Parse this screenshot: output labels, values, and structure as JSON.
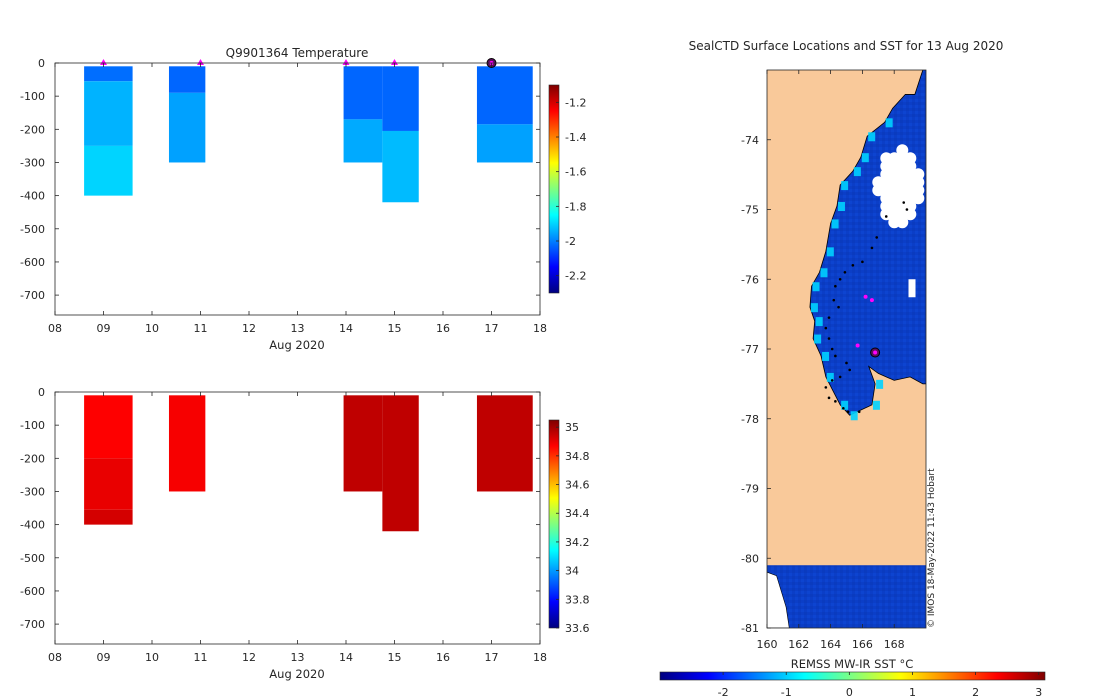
{
  "figure": {
    "credit": "© IMOS 18-May-2022 11:43 Hobart",
    "colors": {
      "axis": "#262626",
      "land": "#f9c99a",
      "ocean": "#0b3ec7",
      "marker": "#ff00ff",
      "current": "#5c0f5c",
      "track": "#000000",
      "cloud": "#ffffff"
    }
  },
  "chart_data": [
    {
      "id": "temperature",
      "type": "heatmap",
      "title": "Q9901364  Temperature",
      "xlabel": "Aug 2020",
      "ylabel": "",
      "xlim": [
        8,
        18
      ],
      "ylim": [
        -760,
        0
      ],
      "xticks": [
        8,
        9,
        10,
        11,
        12,
        13,
        14,
        15,
        16,
        17,
        18
      ],
      "xtick_labels": [
        "08",
        "09",
        "10",
        "11",
        "12",
        "13",
        "14",
        "15",
        "16",
        "17",
        "18"
      ],
      "yticks": [
        0,
        -100,
        -200,
        -300,
        -400,
        -500,
        -600,
        -700
      ],
      "ytick_labels": [
        "0",
        "-100",
        "-200",
        "-300",
        "-400",
        "-500",
        "-600",
        "-700"
      ],
      "profiles": [
        {
          "x0": 8.6,
          "x1": 9.6,
          "segments": [
            [
              -10,
              -55,
              -2.02
            ],
            [
              -55,
              -250,
              -1.94
            ],
            [
              -250,
              -400,
              -1.9
            ]
          ]
        },
        {
          "x0": 10.35,
          "x1": 11.1,
          "segments": [
            [
              -10,
              -90,
              -2.03
            ],
            [
              -90,
              -300,
              -1.96
            ]
          ]
        },
        {
          "x0": 13.95,
          "x1": 14.75,
          "segments": [
            [
              -10,
              -170,
              -2.03
            ],
            [
              -170,
              -300,
              -1.95
            ]
          ]
        },
        {
          "x0": 14.75,
          "x1": 15.5,
          "segments": [
            [
              -10,
              -205,
              -2.03
            ],
            [
              -205,
              -420,
              -1.93
            ]
          ]
        },
        {
          "x0": 16.7,
          "x1": 17.85,
          "segments": [
            [
              -10,
              -185,
              -2.03
            ],
            [
              -185,
              -300,
              -1.96
            ]
          ]
        }
      ],
      "surface_markers": [
        9.0,
        11.0,
        14.0,
        15.0
      ],
      "current_marker": 17.0,
      "colorbar": {
        "colormap": "jet",
        "min": -2.3,
        "max": -1.1,
        "ticks": [
          -2.2,
          -2.0,
          -1.8,
          -1.6,
          -1.4,
          -1.2
        ],
        "tick_labels": [
          "-2.2",
          "-2",
          "-1.8",
          "-1.6",
          "-1.4",
          "-1.2"
        ]
      }
    },
    {
      "id": "salinity",
      "type": "heatmap",
      "title": "",
      "xlabel": "Aug 2020",
      "ylabel": "",
      "xlim": [
        8,
        18
      ],
      "ylim": [
        -760,
        0
      ],
      "xticks": [
        8,
        9,
        10,
        11,
        12,
        13,
        14,
        15,
        16,
        17,
        18
      ],
      "xtick_labels": [
        "08",
        "09",
        "10",
        "11",
        "12",
        "13",
        "14",
        "15",
        "16",
        "17",
        "18"
      ],
      "yticks": [
        0,
        -100,
        -200,
        -300,
        -400,
        -500,
        -600,
        -700
      ],
      "ytick_labels": [
        "0",
        "-100",
        "-200",
        "-300",
        "-400",
        "-500",
        "-600",
        "-700"
      ],
      "profiles": [
        {
          "x0": 8.6,
          "x1": 9.6,
          "segments": [
            [
              -10,
              -200,
              34.87
            ],
            [
              -200,
              -355,
              34.9
            ],
            [
              -355,
              -400,
              34.93
            ]
          ]
        },
        {
          "x0": 10.35,
          "x1": 11.1,
          "segments": [
            [
              -10,
              -300,
              34.88
            ]
          ]
        },
        {
          "x0": 13.95,
          "x1": 14.75,
          "segments": [
            [
              -10,
              -300,
              34.96
            ]
          ]
        },
        {
          "x0": 14.75,
          "x1": 15.5,
          "segments": [
            [
              -10,
              -420,
              34.96
            ]
          ]
        },
        {
          "x0": 16.7,
          "x1": 17.85,
          "segments": [
            [
              -10,
              -300,
              34.96
            ]
          ]
        }
      ],
      "colorbar": {
        "colormap": "jet",
        "min": 33.6,
        "max": 35.05,
        "ticks": [
          33.6,
          33.8,
          34.0,
          34.2,
          34.4,
          34.6,
          34.8,
          35.0
        ],
        "tick_labels": [
          "33.6",
          "33.8",
          "34",
          "34.2",
          "34.4",
          "34.6",
          "34.8",
          "35"
        ]
      }
    },
    {
      "id": "sst-map",
      "type": "heatmap",
      "title": "SealCTD Surface Locations and SST for 13 Aug 2020",
      "xlabel": "",
      "ylabel": "",
      "xlim": [
        160,
        170
      ],
      "ylim": [
        -81,
        -73
      ],
      "xticks": [
        160,
        162,
        164,
        166,
        168
      ],
      "xtick_labels": [
        "160",
        "162",
        "164",
        "166",
        "168"
      ],
      "yticks": [
        -74,
        -75,
        -76,
        -77,
        -78,
        -79,
        -80,
        -81
      ],
      "ytick_labels": [
        "-74",
        "-75",
        "-76",
        "-77",
        "-78",
        "-79",
        "-80",
        "-81"
      ],
      "coastline": [
        [
          169.8,
          -73.0
        ],
        [
          169.3,
          -73.35
        ],
        [
          168.7,
          -73.35
        ],
        [
          167.9,
          -73.55
        ],
        [
          167.4,
          -73.75
        ],
        [
          166.3,
          -73.95
        ],
        [
          165.9,
          -74.25
        ],
        [
          165.4,
          -74.45
        ],
        [
          164.6,
          -74.65
        ],
        [
          164.4,
          -74.95
        ],
        [
          164.0,
          -75.2
        ],
        [
          163.7,
          -75.6
        ],
        [
          163.3,
          -75.9
        ],
        [
          162.8,
          -76.1
        ],
        [
          162.7,
          -76.4
        ],
        [
          163.0,
          -76.6
        ],
        [
          162.9,
          -76.85
        ],
        [
          163.4,
          -77.1
        ],
        [
          163.7,
          -77.4
        ],
        [
          164.6,
          -77.8
        ],
        [
          165.2,
          -77.95
        ],
        [
          166.6,
          -77.8
        ],
        [
          166.8,
          -77.5
        ],
        [
          166.4,
          -77.25
        ],
        [
          167.0,
          -77.35
        ],
        [
          168.0,
          -77.45
        ],
        [
          169.0,
          -77.4
        ],
        [
          169.8,
          -77.5
        ],
        [
          170.0,
          -77.5
        ]
      ],
      "sea_ice_patches": [
        [
          [
            160.0,
            -80.2
          ],
          [
            160.6,
            -80.25
          ],
          [
            161.2,
            -80.7
          ],
          [
            161.4,
            -81.0
          ],
          [
            160.0,
            -81.0
          ]
        ]
      ],
      "cloud_region": {
        "lon": [
          167.0,
          169.6
        ],
        "lat": [
          -74.15,
          -75.2
        ]
      },
      "track_points": [
        [
          168.6,
          -74.9
        ],
        [
          168.8,
          -75.0
        ],
        [
          167.5,
          -75.1
        ],
        [
          166.9,
          -75.4
        ],
        [
          166.6,
          -75.55
        ],
        [
          166.0,
          -75.75
        ],
        [
          165.4,
          -75.8
        ],
        [
          164.9,
          -75.9
        ],
        [
          164.6,
          -76.0
        ],
        [
          164.3,
          -76.1
        ],
        [
          164.2,
          -76.3
        ],
        [
          164.5,
          -76.4
        ],
        [
          163.9,
          -76.55
        ],
        [
          163.7,
          -76.7
        ],
        [
          163.9,
          -76.85
        ],
        [
          164.1,
          -77.0
        ],
        [
          164.3,
          -77.1
        ],
        [
          165.0,
          -77.2
        ],
        [
          165.2,
          -77.3
        ],
        [
          164.6,
          -77.4
        ],
        [
          164.1,
          -77.45
        ],
        [
          163.7,
          -77.55
        ],
        [
          163.9,
          -77.7
        ],
        [
          164.3,
          -77.75
        ],
        [
          164.8,
          -77.85
        ],
        [
          165.1,
          -77.9
        ],
        [
          165.8,
          -77.9
        ]
      ],
      "surface_markers": [
        [
          166.2,
          -76.25
        ],
        [
          166.6,
          -76.3
        ],
        [
          165.7,
          -76.95
        ]
      ],
      "current_marker": [
        166.8,
        -77.05
      ],
      "colorbar": {
        "colormap": "jet",
        "label": "REMSS MW-IR SST °C",
        "min": -3.0,
        "max": 3.1,
        "ticks": [
          -2,
          -1,
          0,
          1,
          2,
          3
        ],
        "tick_labels": [
          "-2",
          "-1",
          "0",
          "1",
          "2",
          "3"
        ]
      }
    }
  ]
}
